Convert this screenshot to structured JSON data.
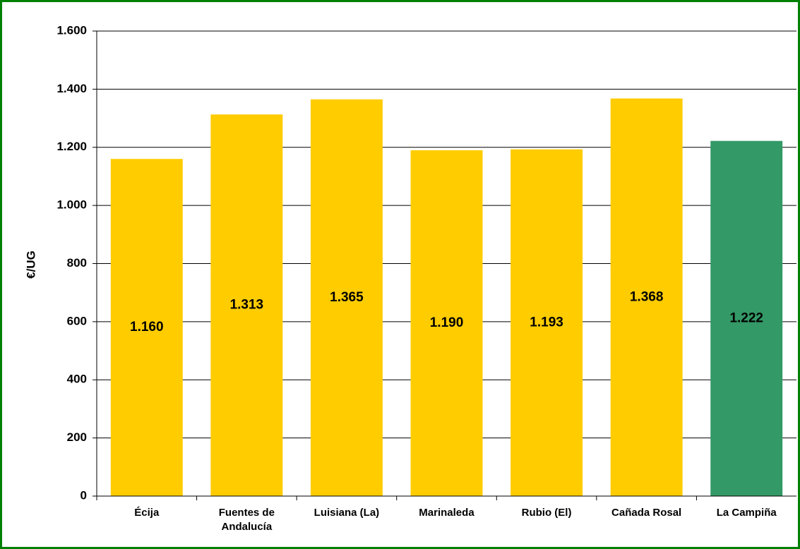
{
  "chart_data": {
    "type": "bar",
    "y_label": "€/UG",
    "categories": [
      "Écija",
      "Fuentes de Andalucía",
      "Luisiana (La)",
      "Marinaleda",
      "Rubio (El)",
      "Cañada Rosal",
      "La Campiña"
    ],
    "values": [
      1160,
      1313,
      1365,
      1190,
      1193,
      1368,
      1222
    ],
    "value_labels": [
      "1.160",
      "1.313",
      "1.365",
      "1.190",
      "1.193",
      "1.368",
      "1.222"
    ],
    "colors": [
      "#ffcc00",
      "#ffcc00",
      "#ffcc00",
      "#ffcc00",
      "#ffcc00",
      "#ffcc00",
      "#339966"
    ],
    "ylim": [
      0,
      1600
    ],
    "yticks": [
      0,
      200,
      400,
      600,
      800,
      {
        "value": 1000,
        "label": "1.000"
      },
      {
        "value": 1200,
        "label": "1.200"
      },
      {
        "value": 1400,
        "label": "1.400"
      },
      {
        "value": 1600,
        "label": "1.600"
      }
    ],
    "grid": true
  }
}
